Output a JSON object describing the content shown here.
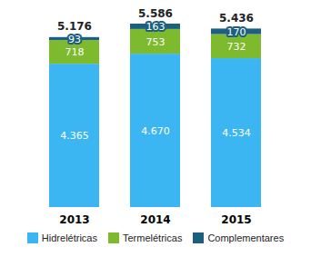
{
  "chart_data": {
    "type": "bar",
    "stacked": true,
    "data_labels": true,
    "tick_labels": "x",
    "legend": "bottom",
    "categories": [
      "2013",
      "2014",
      "2015"
    ],
    "ylim": [
      0,
      5586
    ],
    "series": [
      {
        "name": "Hidrelétricas",
        "color": "#3cb6f2",
        "values": [
          4365,
          4670,
          4534
        ],
        "value_labels": [
          "4.365",
          "4.670",
          "4.534"
        ]
      },
      {
        "name": "Termelétricas",
        "color": "#7dba2e",
        "values": [
          718,
          753,
          732
        ]
      },
      {
        "name": "Complementares",
        "color": "#1d5f7e",
        "values": [
          93,
          163,
          170
        ]
      }
    ],
    "totals": [
      5176,
      5586,
      5436
    ],
    "total_labels": [
      "5.176",
      "5.586",
      "5.436"
    ]
  }
}
